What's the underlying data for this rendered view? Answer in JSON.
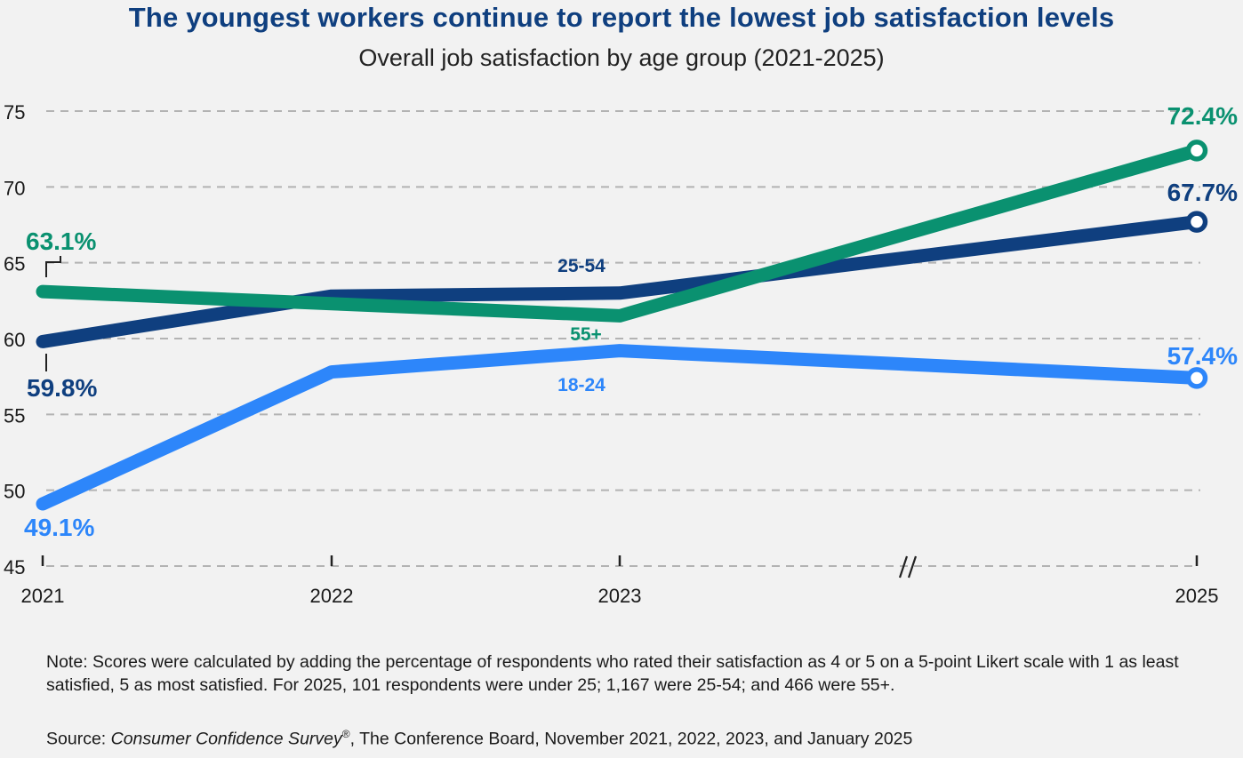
{
  "title": "The youngest workers continue to report the lowest job satisfaction levels",
  "subtitle": "Overall job satisfaction by age group (2021-2025)",
  "chart_data": {
    "type": "line",
    "x": [
      "2021",
      "2022",
      "2023",
      "2025"
    ],
    "ylim": [
      45,
      75
    ],
    "yticks": [
      "45",
      "50",
      "55",
      "60",
      "65",
      "70",
      "75"
    ],
    "grid": true,
    "axis_break_between": [
      "2023",
      "2025"
    ],
    "series": [
      {
        "name": "55+",
        "color": "#0a9170",
        "values": [
          63.1,
          62.3,
          61.5,
          72.4
        ],
        "start_label": "63.1%",
        "end_label": "72.4%"
      },
      {
        "name": "25-54",
        "color": "#0f3f7f",
        "values": [
          59.8,
          62.8,
          63.0,
          67.7
        ],
        "start_label": "59.8%",
        "end_label": "67.7%"
      },
      {
        "name": "18-24",
        "color": "#2d86fa",
        "values": [
          49.1,
          57.8,
          59.2,
          57.4
        ],
        "start_label": "49.1%",
        "end_label": "57.4%"
      }
    ]
  },
  "note": "Note: Scores were calculated by adding the percentage of respondents who rated their satisfaction as 4 or 5 on a 5-point Likert scale with 1 as least satisfied, 5 as most satisfied. For 2025, 101 respondents were under 25; 1,167 were 25-54; and 466 were 55+.",
  "source": {
    "prefix": "Source: ",
    "survey": "Consumer Confidence Survey",
    "mark": "®",
    "rest": ", The Conference Board, November 2021, 2022, 2023, and January 2025"
  }
}
